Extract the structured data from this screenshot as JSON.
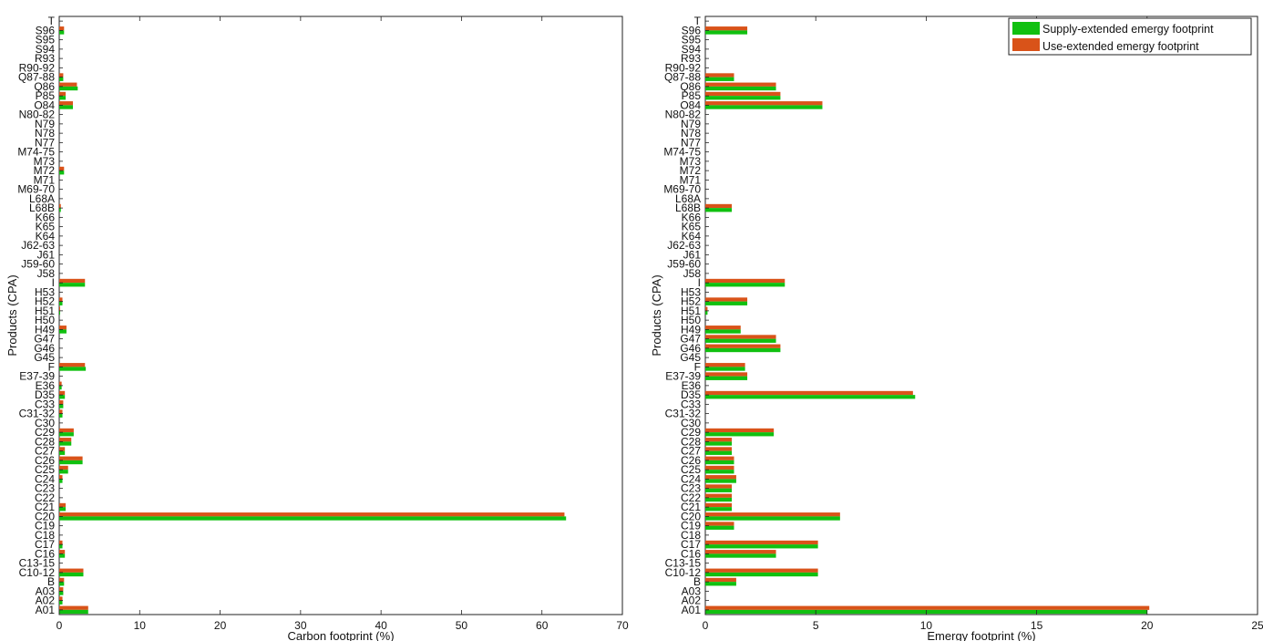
{
  "chart_data": [
    {
      "type": "bar",
      "orientation": "horizontal",
      "xlabel": "Carbon footprint (%)",
      "ylabel": "Products (CPA)",
      "xlim": [
        0,
        70
      ],
      "xticks": [
        0,
        10,
        20,
        30,
        40,
        50,
        60,
        70
      ],
      "grid": false,
      "categories": [
        "T",
        "S96",
        "S95",
        "S94",
        "R93",
        "R90-92",
        "Q87-88",
        "Q86",
        "P85",
        "O84",
        "N80-82",
        "N79",
        "N78",
        "N77",
        "M74-75",
        "M73",
        "M72",
        "M71",
        "M69-70",
        "L68A",
        "L68B",
        "K66",
        "K65",
        "K64",
        "J62-63",
        "J61",
        "J59-60",
        "J58",
        "I",
        "H53",
        "H52",
        "H51",
        "H50",
        "H49",
        "G47",
        "G46",
        "G45",
        "F",
        "E37-39",
        "E36",
        "D35",
        "C33",
        "C31-32",
        "C30",
        "C29",
        "C28",
        "C27",
        "C26",
        "C25",
        "C24",
        "C23",
        "C22",
        "C21",
        "C20",
        "C19",
        "C18",
        "C17",
        "C16",
        "C13-15",
        "C10-12",
        "B",
        "A03",
        "A02",
        "A01"
      ],
      "series": [
        {
          "name": "Supply-extended emergy footprint",
          "values": [
            0,
            0.6,
            0,
            0,
            0,
            0,
            0.5,
            2.3,
            0.8,
            1.7,
            0,
            0,
            0,
            0,
            0,
            0,
            0.6,
            0,
            0,
            0,
            0.2,
            0,
            0,
            0,
            0,
            0,
            0,
            0,
            3.2,
            0,
            0.4,
            0.1,
            0,
            0.9,
            0,
            0,
            0,
            3.3,
            0,
            0.3,
            0.7,
            0.5,
            0.4,
            0,
            1.8,
            1.5,
            0.7,
            2.9,
            1.1,
            0.4,
            0,
            0,
            0.8,
            63,
            0,
            0,
            0.4,
            0.7,
            0,
            3.0,
            0.6,
            0.5,
            0.4,
            3.6
          ]
        },
        {
          "name": "Use-extended emergy footprint",
          "values": [
            0,
            0.6,
            0,
            0,
            0,
            0,
            0.5,
            2.2,
            0.8,
            1.7,
            0,
            0,
            0,
            0,
            0,
            0,
            0.6,
            0,
            0,
            0,
            0.2,
            0,
            0,
            0,
            0,
            0,
            0,
            0,
            3.2,
            0,
            0.4,
            0.1,
            0,
            0.9,
            0,
            0,
            0,
            3.2,
            0,
            0.3,
            0.7,
            0.5,
            0.4,
            0,
            1.8,
            1.5,
            0.7,
            2.9,
            1.1,
            0.4,
            0,
            0,
            0.8,
            62.8,
            0,
            0,
            0.4,
            0.7,
            0,
            3.0,
            0.6,
            0.5,
            0.4,
            3.6
          ]
        }
      ]
    },
    {
      "type": "bar",
      "orientation": "horizontal",
      "xlabel": "Emergy footprint (%)",
      "ylabel": "Products (CPA)",
      "xlim": [
        0,
        25
      ],
      "xticks": [
        0,
        5,
        10,
        15,
        20,
        25
      ],
      "grid": false,
      "legend_position": "top-right",
      "categories": [
        "T",
        "S96",
        "S95",
        "S94",
        "R93",
        "R90-92",
        "Q87-88",
        "Q86",
        "P85",
        "O84",
        "N80-82",
        "N79",
        "N78",
        "N77",
        "M74-75",
        "M73",
        "M72",
        "M71",
        "M69-70",
        "L68A",
        "L68B",
        "K66",
        "K65",
        "K64",
        "J62-63",
        "J61",
        "J59-60",
        "J58",
        "I",
        "H53",
        "H52",
        "H51",
        "H50",
        "H49",
        "G47",
        "G46",
        "G45",
        "F",
        "E37-39",
        "E36",
        "D35",
        "C33",
        "C31-32",
        "C30",
        "C29",
        "C28",
        "C27",
        "C26",
        "C25",
        "C24",
        "C23",
        "C22",
        "C21",
        "C20",
        "C19",
        "C18",
        "C17",
        "C16",
        "C13-15",
        "C10-12",
        "B",
        "A03",
        "A02",
        "A01"
      ],
      "series": [
        {
          "name": "Supply-extended emergy footprint",
          "values": [
            0,
            1.9,
            0,
            0,
            0,
            0,
            1.3,
            3.2,
            3.4,
            5.3,
            0,
            0,
            0,
            0,
            0,
            0,
            0,
            0,
            0,
            0,
            1.2,
            0,
            0,
            0,
            0,
            0,
            0,
            0,
            3.6,
            0,
            1.9,
            0.1,
            0,
            1.6,
            3.2,
            3.4,
            0,
            1.8,
            1.9,
            0,
            9.5,
            0,
            0,
            0,
            3.1,
            1.2,
            1.2,
            1.3,
            1.3,
            1.4,
            1.2,
            1.2,
            1.2,
            6.1,
            1.3,
            0,
            5.1,
            3.2,
            0,
            5.1,
            1.4,
            0,
            0,
            20
          ]
        },
        {
          "name": "Use-extended emergy footprint",
          "values": [
            0,
            1.9,
            0,
            0,
            0,
            0,
            1.3,
            3.2,
            3.4,
            5.3,
            0,
            0,
            0,
            0,
            0,
            0,
            0,
            0,
            0,
            0,
            1.2,
            0,
            0,
            0,
            0,
            0,
            0,
            0,
            3.6,
            0,
            1.9,
            0.1,
            0,
            1.6,
            3.2,
            3.4,
            0,
            1.8,
            1.9,
            0,
            9.4,
            0,
            0,
            0,
            3.1,
            1.2,
            1.2,
            1.3,
            1.3,
            1.4,
            1.2,
            1.2,
            1.2,
            6.1,
            1.3,
            0,
            5.1,
            3.2,
            0,
            5.1,
            1.4,
            0,
            0,
            20.1
          ]
        }
      ]
    }
  ],
  "colors": {
    "supply": "#10c010",
    "use": "#d95319",
    "axis": "#222222"
  }
}
